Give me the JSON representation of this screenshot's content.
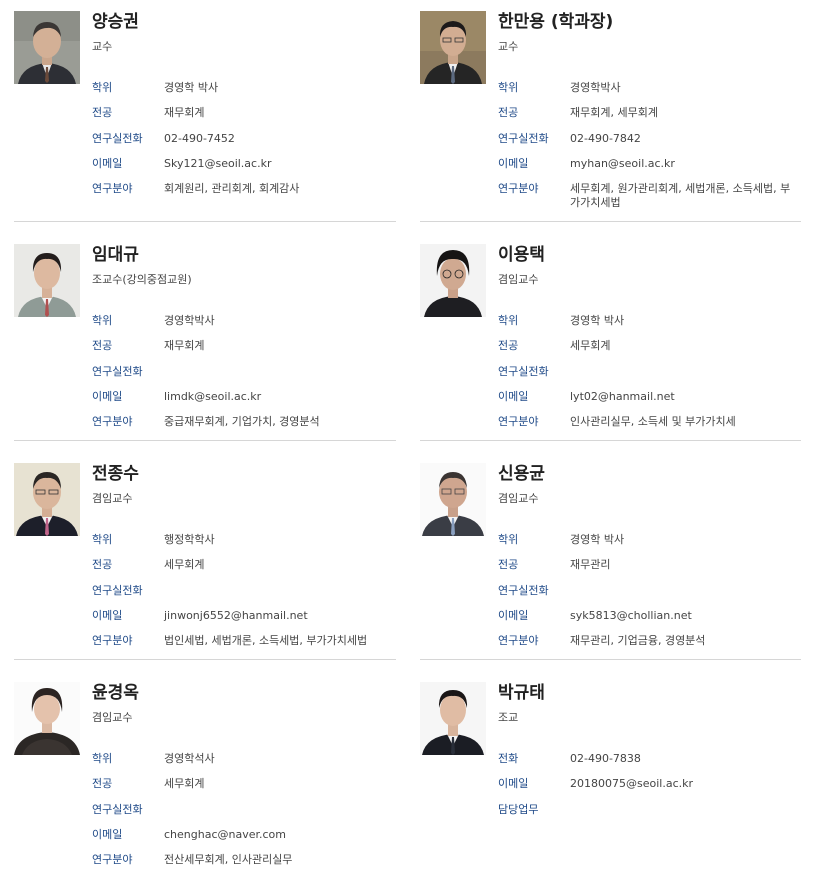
{
  "faculty": [
    {
      "name": "양승권",
      "title": "교수",
      "rows": [
        {
          "label": "학위",
          "value": "경영학 박사"
        },
        {
          "label": "전공",
          "value": "재무회계"
        },
        {
          "label": "연구실전화",
          "value": "02-490-7452"
        },
        {
          "label": "이메일",
          "value": "Sky121@seoil.ac.kr"
        },
        {
          "label": "연구분야",
          "value": "회계원리, 관리회계, 회계감사"
        }
      ]
    },
    {
      "name": "한만용 (학과장)",
      "title": "교수",
      "rows": [
        {
          "label": "학위",
          "value": "경영학박사"
        },
        {
          "label": "전공",
          "value": "재무회계, 세무회계"
        },
        {
          "label": "연구실전화",
          "value": "02-490-7842"
        },
        {
          "label": "이메일",
          "value": "myhan@seoil.ac.kr"
        },
        {
          "label": "연구분야",
          "value": "세무회계, 원가관리회계, 세법개론, 소득세법, 부가가치세법"
        }
      ]
    },
    {
      "name": "임대규",
      "title": "조교수(강의중점교원)",
      "rows": [
        {
          "label": "학위",
          "value": "경영학박사"
        },
        {
          "label": "전공",
          "value": "재무회계"
        },
        {
          "label": "연구실전화",
          "value": ""
        },
        {
          "label": "이메일",
          "value": "limdk@seoil.ac.kr"
        },
        {
          "label": "연구분야",
          "value": "중급재무회계, 기업가치, 경영분석"
        }
      ]
    },
    {
      "name": "이용택",
      "title": "겸임교수",
      "rows": [
        {
          "label": "학위",
          "value": "경영학 박사"
        },
        {
          "label": "전공",
          "value": "세무회계"
        },
        {
          "label": "연구실전화",
          "value": ""
        },
        {
          "label": "이메일",
          "value": "lyt02@hanmail.net"
        },
        {
          "label": "연구분야",
          "value": "인사관리실무, 소득세 및 부가가치세"
        }
      ]
    },
    {
      "name": "전종수",
      "title": "겸임교수",
      "rows": [
        {
          "label": "학위",
          "value": "행정학학사"
        },
        {
          "label": "전공",
          "value": "세무회계"
        },
        {
          "label": "연구실전화",
          "value": ""
        },
        {
          "label": "이메일",
          "value": "jinwonj6552@hanmail.net"
        },
        {
          "label": "연구분야",
          "value": "법인세법, 세법개론, 소득세법, 부가가치세법"
        }
      ]
    },
    {
      "name": "신용균",
      "title": "겸임교수",
      "rows": [
        {
          "label": "학위",
          "value": "경영학 박사"
        },
        {
          "label": "전공",
          "value": "재무관리"
        },
        {
          "label": "연구실전화",
          "value": ""
        },
        {
          "label": "이메일",
          "value": "syk5813@chollian.net"
        },
        {
          "label": "연구분야",
          "value": "재무관리, 기업금융, 경영분석"
        }
      ]
    },
    {
      "name": "윤경옥",
      "title": "겸임교수",
      "rows": [
        {
          "label": "학위",
          "value": "경영학석사"
        },
        {
          "label": "전공",
          "value": "세무회계"
        },
        {
          "label": "연구실전화",
          "value": ""
        },
        {
          "label": "이메일",
          "value": "chenghac@naver.com"
        },
        {
          "label": "연구분야",
          "value": "전산세무회계, 인사관리실무"
        }
      ]
    },
    {
      "name": "박규태",
      "title": "조교",
      "rows": [
        {
          "label": "전화",
          "value": "02-490-7838"
        },
        {
          "label": "이메일",
          "value": "20180075@seoil.ac.kr"
        },
        {
          "label": "담당업무",
          "value": ""
        }
      ]
    }
  ]
}
